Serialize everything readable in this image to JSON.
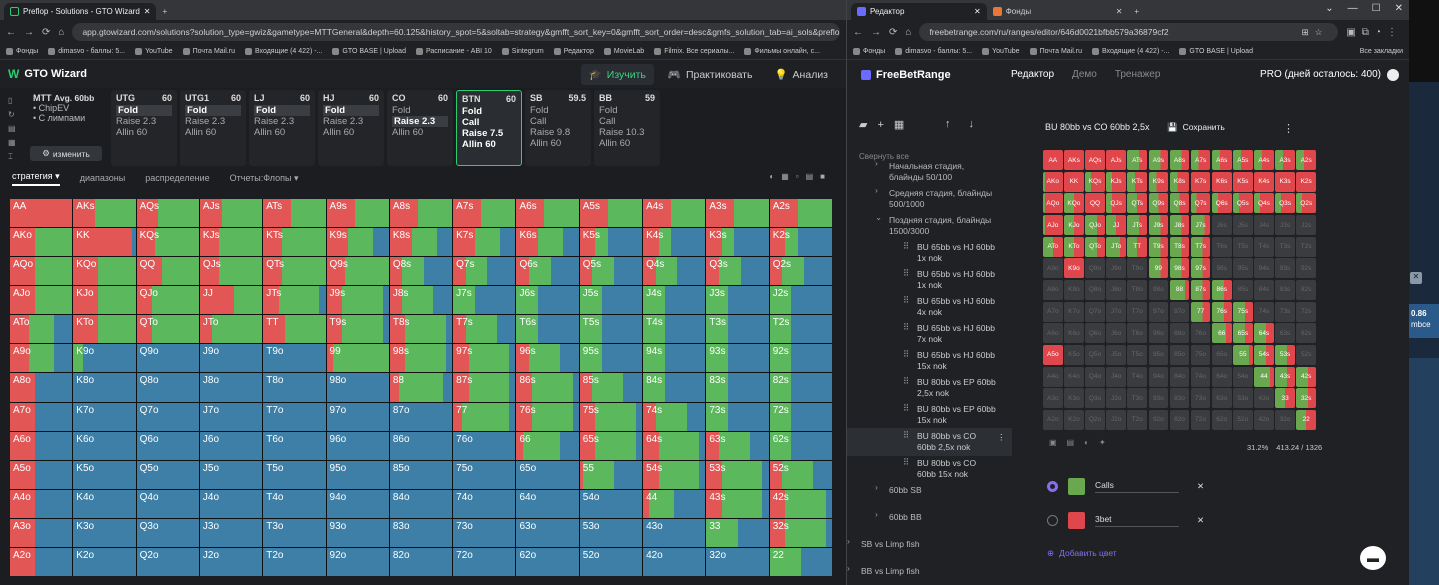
{
  "gto": {
    "tabs": [
      {
        "label": "Preflop - Solutions - GTO Wizard"
      }
    ],
    "url": "app.gtowizard.com/solutions?solution_type=gwiz&gametype=MTTGeneral&depth=60.125&history_spot=5&soltab=strategy&gmfft_sort_key=0&gmfft_sort_order=desc&gmfs_solution_tab=ai_sols&preflop_action",
    "bookmarks": [
      "Фонды",
      "dimasvo - баллы: 5...",
      "YouTube",
      "Почта Mail.ru",
      "Входящие (4 422) -...",
      "GTO BASE | Upload",
      "Расписание - ABI 10",
      "Sintegrum",
      "Редактор",
      "MovieLab",
      "Filmix. Все сериалы...",
      "Фильмы онлайн, с..."
    ],
    "app_title": "GTO Wizard",
    "nav": [
      "Изучить",
      "Практиковать",
      "Анализ"
    ],
    "meta": {
      "title": "MTT",
      "avg": "Avg. 60bb",
      "lines": [
        "• ChipEV",
        "• С лимпами"
      ],
      "edit": "изменить"
    },
    "positions": [
      {
        "name": "UTG",
        "stack": "60",
        "actions": [
          "Fold",
          "Raise 2.3",
          "Allin 60"
        ],
        "hl": 0
      },
      {
        "name": "UTG1",
        "stack": "60",
        "actions": [
          "Fold",
          "Raise 2.3",
          "Allin 60"
        ],
        "hl": 0
      },
      {
        "name": "LJ",
        "stack": "60",
        "actions": [
          "Fold",
          "Raise 2.3",
          "Allin 60"
        ],
        "hl": 0
      },
      {
        "name": "HJ",
        "stack": "60",
        "actions": [
          "Fold",
          "Raise 2.3",
          "Allin 60"
        ],
        "hl": 0
      },
      {
        "name": "CO",
        "stack": "60",
        "actions": [
          "Fold",
          "Raise 2.3",
          "Allin 60"
        ],
        "hl": 1
      },
      {
        "name": "BTN",
        "stack": "60",
        "actions": [
          "Fold",
          "Call",
          "Raise 7.5",
          "Allin 60"
        ],
        "hl": -1
      },
      {
        "name": "SB",
        "stack": "59.5",
        "actions": [
          "Fold",
          "Call",
          "Raise 9.8",
          "Allin 60"
        ],
        "hl": -1
      },
      {
        "name": "BB",
        "stack": "59",
        "actions": [
          "Fold",
          "Call",
          "Raise 10.3",
          "Allin 60"
        ],
        "hl": -1
      }
    ],
    "subtabs": [
      "стратегия",
      "диапазоны",
      "распределение",
      "Отчеты:Флопы"
    ],
    "colors": {
      "fold": "#3d7fa6",
      "call": "#5cb85c",
      "raise": "#e35656"
    }
  },
  "fbr": {
    "tabs": [
      {
        "label": "Редактор"
      },
      {
        "label": "Фонды"
      }
    ],
    "url": "freebetrange.com/ru/ranges/editor/646d0021bfbb579a36879cf2",
    "bookmarks": [
      "Фонды",
      "dimasvo - баллы: 5...",
      "YouTube",
      "Почта Mail.ru",
      "Входящие (4 422) -...",
      "GTO BASE | Upload"
    ],
    "bookmarks_right": "Все закладки",
    "logo": "FreeBetRange",
    "nav": [
      "Редактор",
      "Демо",
      "Тренажер"
    ],
    "pro": "PRO (дней осталось: 400)",
    "collapse": "Свернуть все",
    "tree": [
      {
        "t": "Начальная стадия, блайнды 50/100",
        "lvl": 1,
        "chev": "›"
      },
      {
        "t": "Средняя стадия, блайнды 500/1000",
        "lvl": 1,
        "chev": "›"
      },
      {
        "t": "Поздняя стадия, блайнды 1500/3000",
        "lvl": 1,
        "chev": "⌄"
      },
      {
        "t": "BU 65bb vs HJ 60bb 1x nok",
        "lvl": 2
      },
      {
        "t": "BU 65bb vs HJ 60bb 1x nok",
        "lvl": 2
      },
      {
        "t": "BU 65bb vs HJ 60bb 4x nok",
        "lvl": 2
      },
      {
        "t": "BU 65bb vs HJ 60bb 7x nok",
        "lvl": 2
      },
      {
        "t": "BU 65bb vs HJ 60bb 15x nok",
        "lvl": 2
      },
      {
        "t": "BU 80bb vs EP 60bb 2,5x nok",
        "lvl": 2
      },
      {
        "t": "BU 80bb vs EP 60bb 15x nok",
        "lvl": 2
      },
      {
        "t": "BU 80bb vs CO 60bb 2,5x nok",
        "lvl": 2,
        "sel": true
      },
      {
        "t": "BU 80bb vs CO 60bb 15x nok",
        "lvl": 2
      },
      {
        "t": "60bb SB",
        "lvl": 1,
        "chev": "›"
      },
      {
        "t": "60bb BB",
        "lvl": 1,
        "chev": "›"
      },
      {
        "t": "SB vs Limp fish",
        "lvl": 0,
        "chev": "›"
      },
      {
        "t": "BB vs Limp fish",
        "lvl": 0,
        "chev": "›"
      }
    ],
    "range_title": "BU 80bb vs CO 60bb 2,5x",
    "save": "Сохранить",
    "stats": {
      "pct": "31.2%",
      "combos": "413.24 / 1326"
    },
    "colors": [
      {
        "name": "Calls",
        "hex": "#6aa84f"
      },
      {
        "name": "3bet",
        "hex": "#e0474c"
      }
    ],
    "add_color": "Добавить цвет"
  },
  "side_panel": {
    "value": "0.86",
    "label": "mbce"
  }
}
